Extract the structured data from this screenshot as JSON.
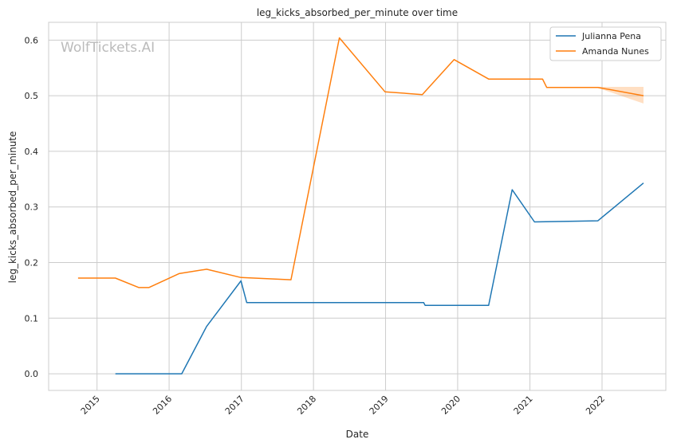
{
  "chart_data": {
    "type": "line",
    "title": "leg_kicks_absorbed_per_minute over time",
    "xlabel": "Date",
    "ylabel": "leg_kicks_absorbed_per_minute",
    "xlim": [
      "2014-05-01",
      "2022-11-20"
    ],
    "ylim": [
      -0.03,
      0.632
    ],
    "x_ticks": [
      "2015",
      "2016",
      "2017",
      "2018",
      "2019",
      "2020",
      "2021",
      "2022"
    ],
    "y_ticks": [
      0.0,
      0.1,
      0.2,
      0.3,
      0.4,
      0.5,
      0.6
    ],
    "grid": true,
    "legend_position": "top-right",
    "watermark": "WolfTickets.AI",
    "series": [
      {
        "name": "Julianna Pena",
        "color": "#1f77b4",
        "points": [
          [
            "2015-04-04",
            0.0
          ],
          [
            "2016-03-05",
            0.0
          ],
          [
            "2016-07-09",
            0.085
          ],
          [
            "2016-12-30",
            0.167
          ],
          [
            "2017-01-28",
            0.128
          ],
          [
            "2019-07-13",
            0.128
          ],
          [
            "2019-07-20",
            0.123
          ],
          [
            "2020-06-06",
            0.123
          ],
          [
            "2020-10-03",
            0.331
          ],
          [
            "2021-01-24",
            0.273
          ],
          [
            "2021-12-11",
            0.275
          ],
          [
            "2022-07-30",
            0.343
          ]
        ]
      },
      {
        "name": "Amanda Nunes",
        "color": "#ff7f0e",
        "points": [
          [
            "2014-09-27",
            0.172
          ],
          [
            "2015-04-04",
            0.172
          ],
          [
            "2015-08-01",
            0.155
          ],
          [
            "2015-09-20",
            0.155
          ],
          [
            "2016-02-20",
            0.18
          ],
          [
            "2016-07-09",
            0.188
          ],
          [
            "2016-12-30",
            0.173
          ],
          [
            "2017-09-09",
            0.169
          ],
          [
            "2018-05-12",
            0.604
          ],
          [
            "2018-12-29",
            0.507
          ],
          [
            "2019-07-06",
            0.502
          ],
          [
            "2019-12-14",
            0.565
          ],
          [
            "2020-06-06",
            0.53
          ],
          [
            "2021-03-06",
            0.53
          ],
          [
            "2021-03-27",
            0.515
          ],
          [
            "2021-12-11",
            0.515
          ],
          [
            "2022-07-30",
            0.5
          ]
        ],
        "band": [
          [
            "2021-12-11",
            0.514,
            0.516
          ],
          [
            "2022-07-30",
            0.486,
            0.516
          ]
        ]
      }
    ]
  }
}
